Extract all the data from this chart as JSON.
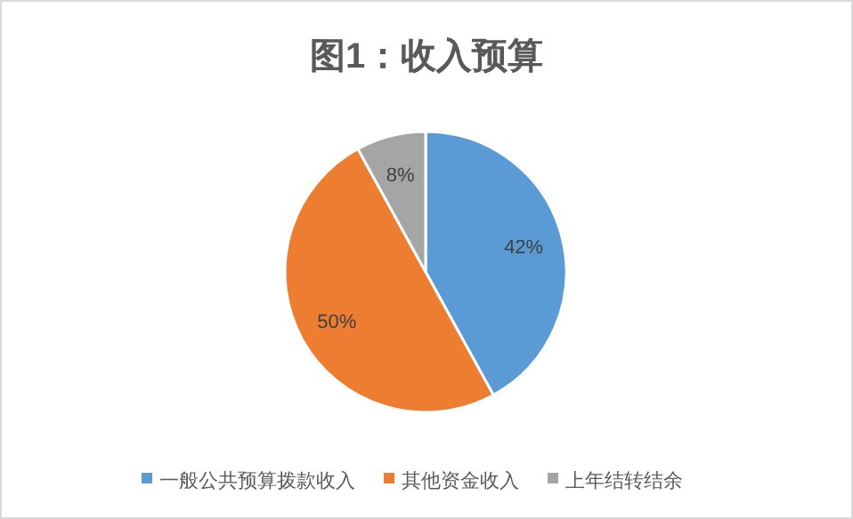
{
  "chart_data": {
    "type": "pie",
    "title": "图1：收入预算",
    "categories": [
      "一般公共预算拨款收入",
      "其他资金收入",
      "上年结转结余"
    ],
    "values": [
      42,
      50,
      8
    ],
    "colors": [
      "#5b9bd5",
      "#ed7d31",
      "#a5a5a5"
    ],
    "value_labels": [
      "42%",
      "50%",
      "8%"
    ],
    "legend": "bottom"
  }
}
